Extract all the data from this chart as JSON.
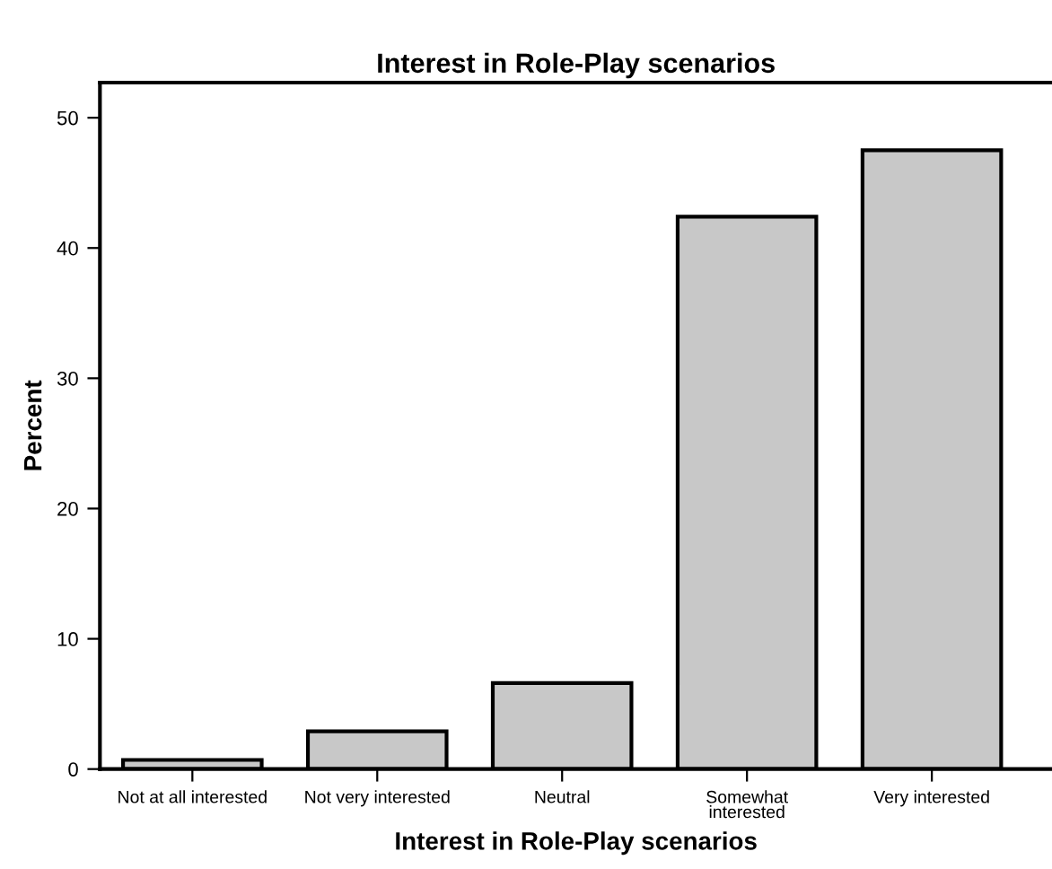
{
  "chart_data": {
    "type": "bar",
    "title": "Interest in Role-Play scenarios",
    "xlabel": "Interest in Role-Play scenarios",
    "ylabel": "Percent",
    "categories": [
      "Not at all interested",
      "Not very interested",
      "Neutral",
      "Somewhat\ninterested",
      "Very interested"
    ],
    "values": [
      0.7,
      2.9,
      6.6,
      42.4,
      47.5
    ],
    "color": "#c8c8c8",
    "ylim": [
      0,
      52.7
    ],
    "yticks": [
      0,
      10,
      20,
      30,
      40,
      50
    ],
    "grid": false,
    "legend": false
  }
}
